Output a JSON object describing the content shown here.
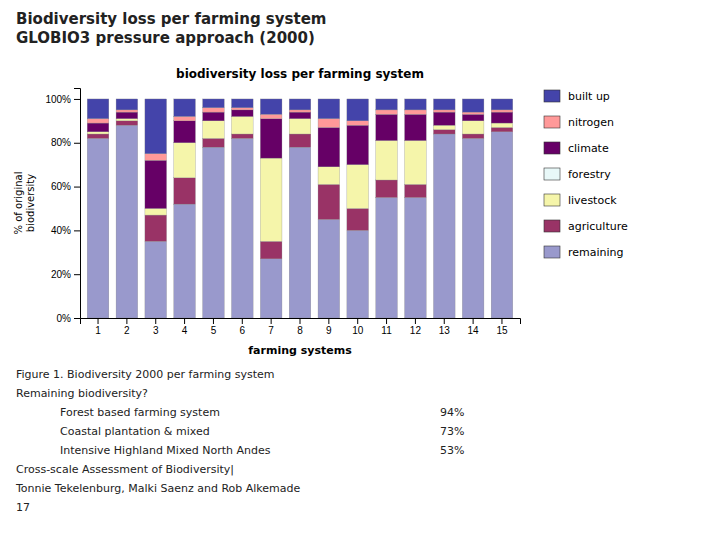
{
  "chart_data": {
    "type": "bar",
    "stacked": true,
    "title": "Biodiversity loss per farming system\nGLOBIO3 pressure approach (2000)",
    "subtitle": "biodiversity loss per farming system",
    "xlabel": "farming systems",
    "ylabel": "% of original\nbiodiversity",
    "categories": [
      1,
      2,
      3,
      4,
      5,
      6,
      7,
      8,
      9,
      10,
      11,
      12,
      13,
      14,
      15
    ],
    "series": [
      {
        "name": "remaining",
        "color": "#9999CC",
        "values": [
          82,
          88,
          35,
          52,
          78,
          82,
          27,
          78,
          45,
          40,
          55,
          55,
          84,
          82,
          85
        ]
      },
      {
        "name": "agriculture",
        "color": "#993366",
        "values": [
          2,
          2,
          12,
          12,
          4,
          2,
          8,
          6,
          16,
          10,
          8,
          6,
          2,
          2,
          2
        ]
      },
      {
        "name": "livestock",
        "color": "#F5F5AA",
        "values": [
          1,
          1,
          3,
          16,
          8,
          8,
          38,
          7,
          8,
          20,
          18,
          20,
          2,
          6,
          2
        ]
      },
      {
        "name": "forestry",
        "color": "#E8F8F8",
        "values": [
          0,
          0,
          0,
          0,
          0,
          0,
          0,
          0,
          0,
          0,
          0,
          0,
          0,
          0,
          0
        ]
      },
      {
        "name": "climate",
        "color": "#660066",
        "values": [
          4,
          3,
          22,
          10,
          4,
          3,
          18,
          3,
          18,
          18,
          12,
          12,
          6,
          3,
          5
        ]
      },
      {
        "name": "nitrogen",
        "color": "#FF9999",
        "values": [
          2,
          1,
          3,
          2,
          2,
          1,
          2,
          1,
          4,
          2,
          2,
          2,
          1,
          1,
          1
        ]
      },
      {
        "name": "built up",
        "color": "#4444AA",
        "values": [
          9,
          5,
          25,
          8,
          4,
          4,
          7,
          5,
          9,
          10,
          5,
          5,
          5,
          6,
          5
        ]
      }
    ],
    "ylim": [
      0,
      105
    ],
    "yticks": [
      {
        "value": 0,
        "label": "0%"
      },
      {
        "value": 20,
        "label": "20%"
      },
      {
        "value": 40,
        "label": "40%"
      },
      {
        "value": 60,
        "label": "60%"
      },
      {
        "value": 80,
        "label": "80%"
      },
      {
        "value": 100,
        "label": "100%"
      }
    ],
    "grid": false,
    "legend": "right",
    "annotations": [
      "Figure 1. Biodiversity 2000 per farming system",
      "Remaining biodiversity?",
      [
        "Forest based farming system",
        "94%"
      ],
      [
        "Coastal plantation & mixed",
        "73%"
      ],
      [
        "Intensive Highland Mixed North Andes",
        "53%"
      ],
      "Cross-scale Assessment of Biodiversity|",
      "Tonnie Tekelenburg, Malki Saenz and Rob Alkemade",
      "17"
    ]
  }
}
